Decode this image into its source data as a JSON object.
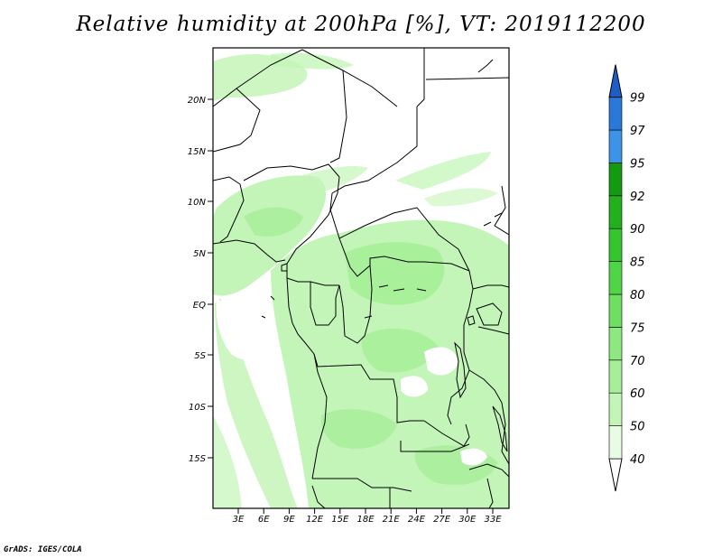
{
  "title": "Relative humidity at 200hPa [%], VT: 2019112200",
  "credit": "GrADS: IGES/COLA",
  "map": {
    "lon_range": [
      0,
      35
    ],
    "lat_range": [
      -20,
      25
    ],
    "lat_ticks": [
      "20N",
      "15N",
      "10N",
      "5N",
      "EQ",
      "5S",
      "10S",
      "15S"
    ],
    "lon_ticks": [
      "3E",
      "6E",
      "9E",
      "12E",
      "15E",
      "18E",
      "21E",
      "24E",
      "27E",
      "30E",
      "33E"
    ]
  },
  "colorbar": {
    "labels": [
      "40",
      "50",
      "60",
      "70",
      "75",
      "80",
      "85",
      "90",
      "92",
      "95",
      "97",
      "99"
    ],
    "colors": [
      "#e8fbe3",
      "#c4f5b8",
      "#a6ef98",
      "#8de87f",
      "#6fdf62",
      "#4fd646",
      "#35c52f",
      "#22b01d",
      "#129a10",
      "#3d93e8",
      "#2a78da",
      "#1d5ec6"
    ],
    "extend": "both"
  }
}
